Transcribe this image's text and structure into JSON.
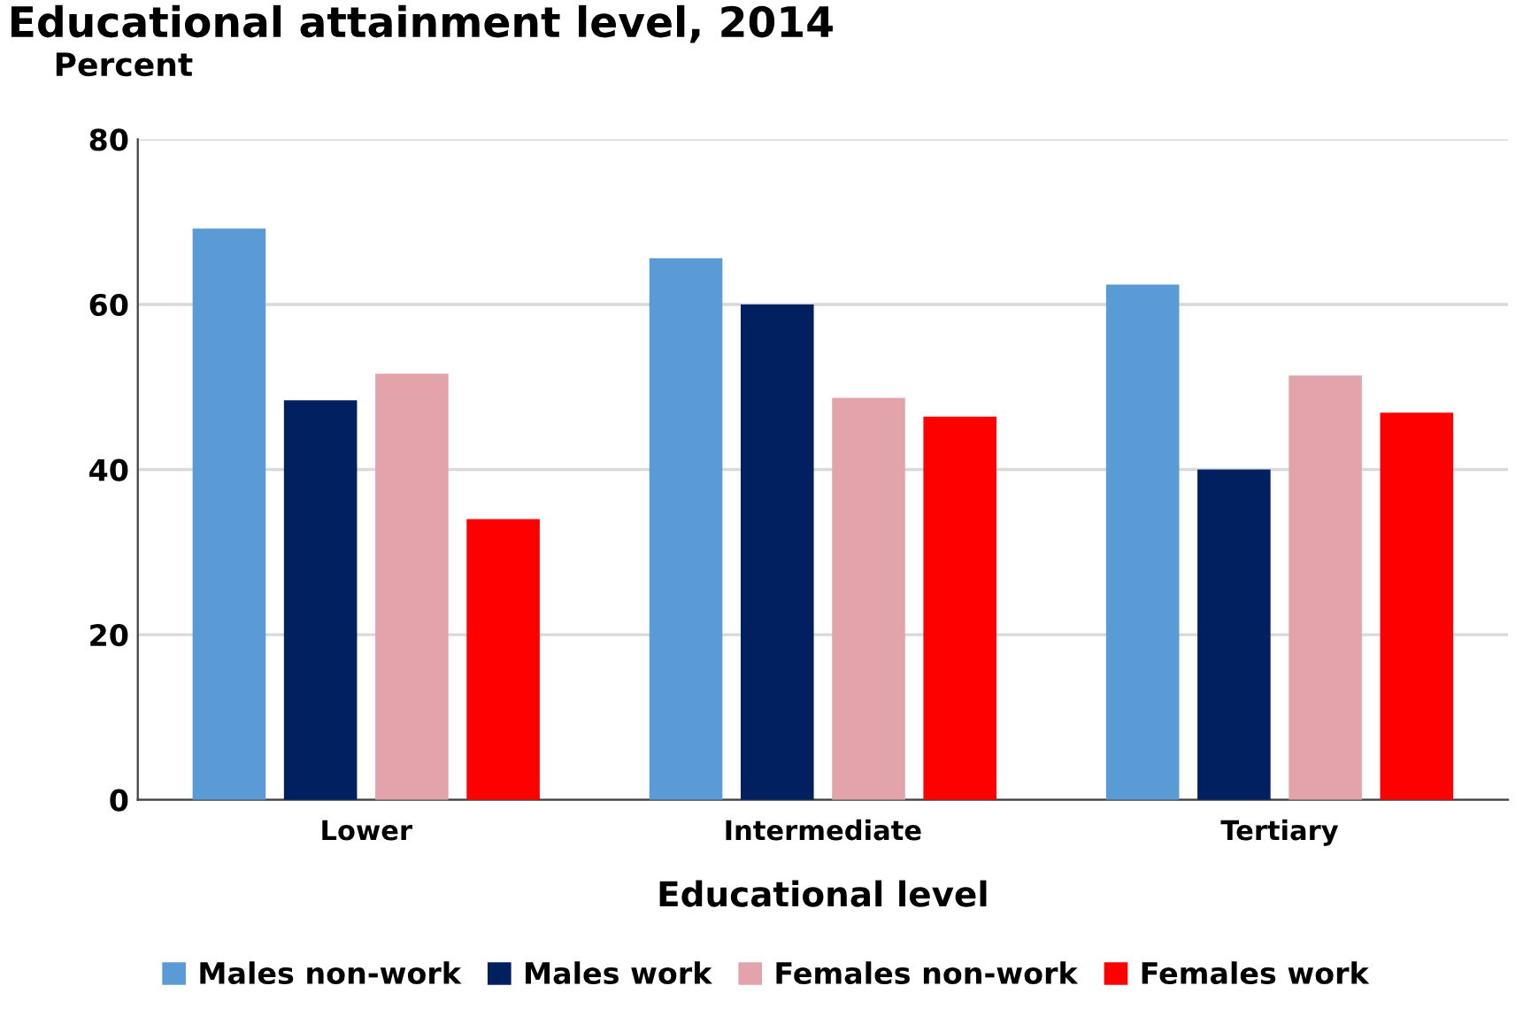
{
  "chart_data": {
    "type": "bar",
    "title": "Educational attainment level, 2014",
    "ylabel": "Percent",
    "xlabel": "Educational level",
    "categories": [
      "Lower",
      "Intermediate",
      "Tertiary"
    ],
    "series": [
      {
        "name": "Males non-work",
        "color": "#5b9bd5",
        "values": [
          69.2,
          65.6,
          62.4
        ]
      },
      {
        "name": "Males work",
        "color": "#002060",
        "values": [
          48.4,
          60.0,
          40.0
        ]
      },
      {
        "name": "Females non-work",
        "color": "#e2a3aa",
        "values": [
          51.6,
          48.7,
          51.4
        ]
      },
      {
        "name": "Females work",
        "color": "#ff0000",
        "values": [
          34.0,
          46.4,
          46.9
        ]
      }
    ],
    "ylim": [
      0,
      80
    ],
    "yticks": [
      0,
      20,
      40,
      60,
      80
    ],
    "grid": "y",
    "legend": "bottom"
  }
}
